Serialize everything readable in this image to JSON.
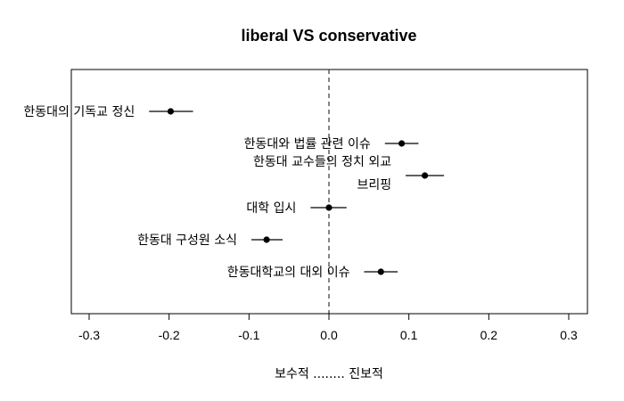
{
  "chart_data": {
    "type": "scatter",
    "title": "liberal VS conservative",
    "xlabel": "보수적 ........ 진보적",
    "ylabel": "",
    "xlim": [
      -0.3,
      0.3
    ],
    "xticks": [
      "-0.3",
      "-0.2",
      "-0.1",
      "0.0",
      "0.1",
      "0.2",
      "0.3"
    ],
    "reference_line": {
      "x": 0.0,
      "style": "dashed"
    },
    "grid": false,
    "series": [
      {
        "points": [
          {
            "category": "한동대의 기독교 정신",
            "category_lines": [
              "한동대의 기독교 정신"
            ],
            "estimate": -0.198,
            "lower": -0.225,
            "upper": -0.17
          },
          {
            "category": "한동대와 법률 관련 이슈",
            "category_lines": [
              "한동대와 법률 관련 이슈"
            ],
            "estimate": 0.091,
            "lower": 0.07,
            "upper": 0.112
          },
          {
            "category": "한동대 교수들의 정치 외교 브리핑",
            "category_lines": [
              "한동대 교수들의 정치 외교",
              "브리핑"
            ],
            "estimate": 0.12,
            "lower": 0.096,
            "upper": 0.144
          },
          {
            "category": "대학 입시",
            "category_lines": [
              "대학 입시"
            ],
            "estimate": 0.0,
            "lower": -0.023,
            "upper": 0.022
          },
          {
            "category": "한동대 구성원 소식",
            "category_lines": [
              "한동대 구성원 소식"
            ],
            "estimate": -0.078,
            "lower": -0.097,
            "upper": -0.058
          },
          {
            "category": "한동대학교의 대외 이슈",
            "category_lines": [
              "한동대학교의 대외 이슈"
            ],
            "estimate": 0.065,
            "lower": 0.044,
            "upper": 0.086
          }
        ]
      }
    ]
  }
}
